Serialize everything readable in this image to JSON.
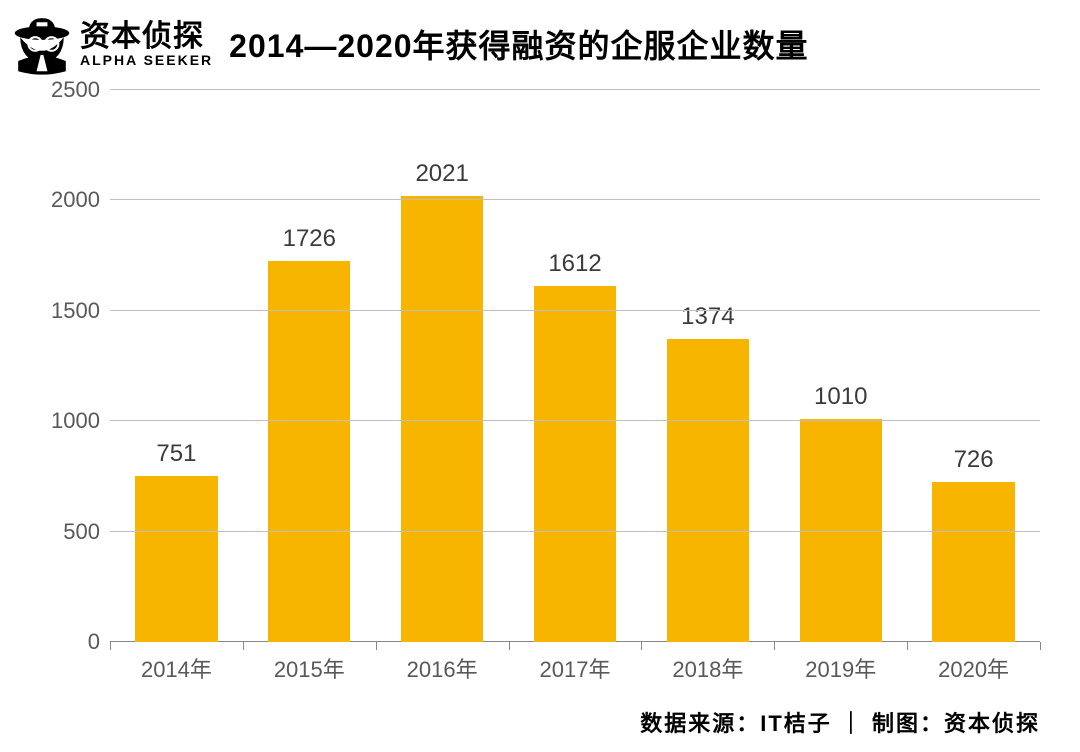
{
  "brand": {
    "name_cn": "资本侦探",
    "name_en": "ALPHA SEEKER"
  },
  "chart": {
    "type": "bar",
    "title": "2014—2020年获得融资的企服企业数量",
    "title_fontsize": 32,
    "categories": [
      "2014年",
      "2015年",
      "2016年",
      "2017年",
      "2018年",
      "2019年",
      "2020年"
    ],
    "values": [
      751,
      1726,
      2021,
      1612,
      1374,
      1010,
      726
    ],
    "bar_color": "#f7b500",
    "background_color": "#ffffff",
    "grid_color": "#bfbfbf",
    "axis_color": "#888888",
    "ylim": [
      0,
      2500
    ],
    "ytick_step": 500,
    "yticks": [
      0,
      500,
      1000,
      1500,
      2000,
      2500
    ],
    "tick_label_color": "#595959",
    "tick_label_fontsize": 22,
    "value_label_color": "#3b3b3b",
    "value_label_fontsize": 24,
    "bar_width": 0.62
  },
  "source": {
    "text": "数据来源：IT桔子 ｜ 制图：资本侦探",
    "fontsize": 22,
    "color": "#000000"
  }
}
